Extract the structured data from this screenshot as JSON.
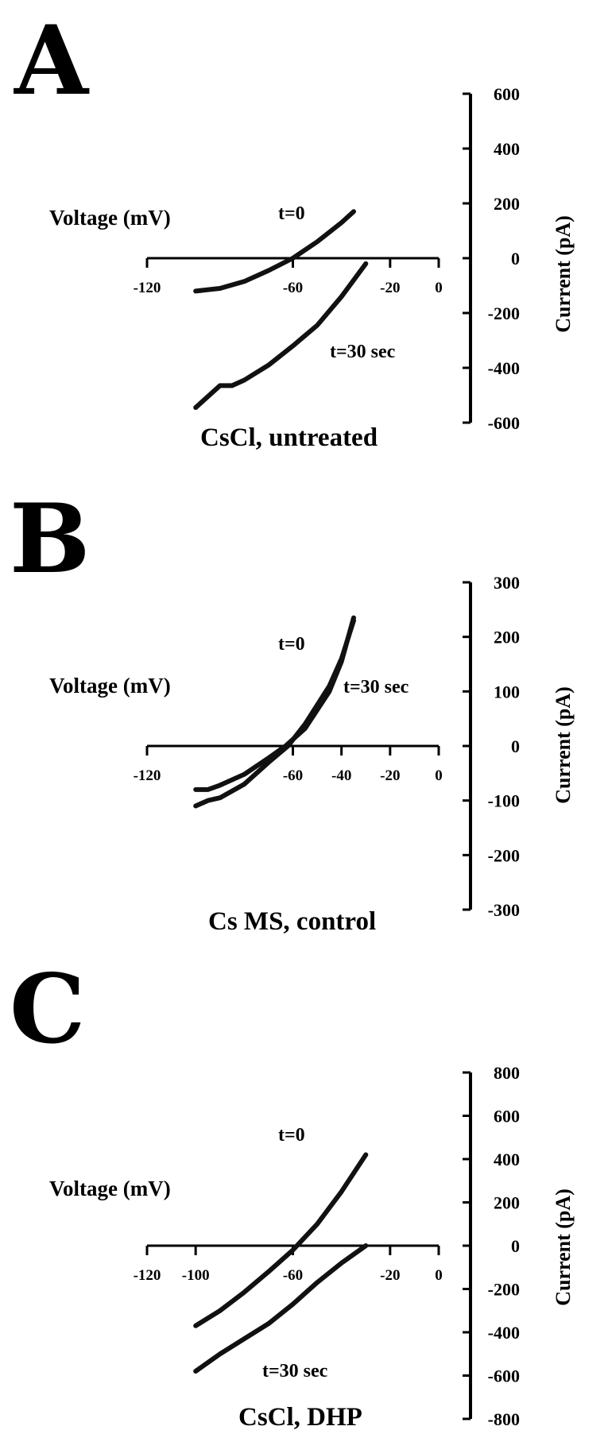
{
  "chart_data": [
    {
      "type": "line",
      "panel": "A",
      "caption": "CsCl, untreated",
      "xlabel": "Voltage (mV)",
      "ylabel": "Current (pA)",
      "xlim": [
        -120,
        0
      ],
      "ylim": [
        -600,
        600
      ],
      "x_ticks": [
        -120,
        -60,
        -20,
        0
      ],
      "y_ticks": [
        600,
        400,
        200,
        0,
        -200,
        -400,
        -600
      ],
      "series": [
        {
          "name": "t=0",
          "x": [
            -100,
            -90,
            -80,
            -70,
            -60,
            -50,
            -40,
            -35
          ],
          "y": [
            -120,
            -110,
            -85,
            -45,
            0,
            60,
            130,
            170
          ]
        },
        {
          "name": "t=30 sec",
          "x": [
            -100,
            -90,
            -85,
            -80,
            -70,
            -60,
            -50,
            -40,
            -30
          ],
          "y": [
            -545,
            -465,
            -465,
            -445,
            -390,
            -320,
            -245,
            -140,
            -20
          ]
        }
      ]
    },
    {
      "type": "line",
      "panel": "B",
      "caption": "Cs MS, control",
      "xlabel": "Voltage (mV)",
      "ylabel": "Current (pA)",
      "xlim": [
        -120,
        0
      ],
      "ylim": [
        -300,
        300
      ],
      "x_ticks": [
        -120,
        -60,
        -40,
        -20,
        0
      ],
      "y_ticks": [
        300,
        200,
        100,
        0,
        -100,
        -200,
        -300
      ],
      "series": [
        {
          "name": "t=0",
          "x": [
            -100,
            -95,
            -90,
            -80,
            -70,
            -63,
            -55,
            -45,
            -40,
            -35
          ],
          "y": [
            -80,
            -80,
            -72,
            -52,
            -22,
            0,
            32,
            100,
            155,
            235
          ]
        },
        {
          "name": "t=30 sec",
          "x": [
            -100,
            -95,
            -90,
            -80,
            -70,
            -62,
            -55,
            -45,
            -40,
            -35
          ],
          "y": [
            -110,
            -100,
            -95,
            -70,
            -30,
            0,
            40,
            110,
            160,
            230
          ]
        }
      ]
    },
    {
      "type": "line",
      "panel": "C",
      "caption": "CsCl, DHP",
      "xlabel": "Voltage (mV)",
      "ylabel": "Current (pA)",
      "xlim": [
        -120,
        0
      ],
      "ylim": [
        -800,
        800
      ],
      "x_ticks": [
        -120,
        -100,
        -60,
        -20,
        0
      ],
      "y_ticks": [
        800,
        600,
        400,
        200,
        0,
        -200,
        -400,
        -600,
        -800
      ],
      "series": [
        {
          "name": "t=0",
          "x": [
            -100,
            -90,
            -80,
            -70,
            -60,
            -50,
            -40,
            -30
          ],
          "y": [
            -370,
            -300,
            -215,
            -120,
            -20,
            100,
            250,
            420
          ]
        },
        {
          "name": "t=30 sec",
          "x": [
            -100,
            -90,
            -80,
            -70,
            -60,
            -50,
            -40,
            -30
          ],
          "y": [
            -580,
            -500,
            -430,
            -360,
            -270,
            -170,
            -80,
            0
          ]
        }
      ]
    }
  ]
}
